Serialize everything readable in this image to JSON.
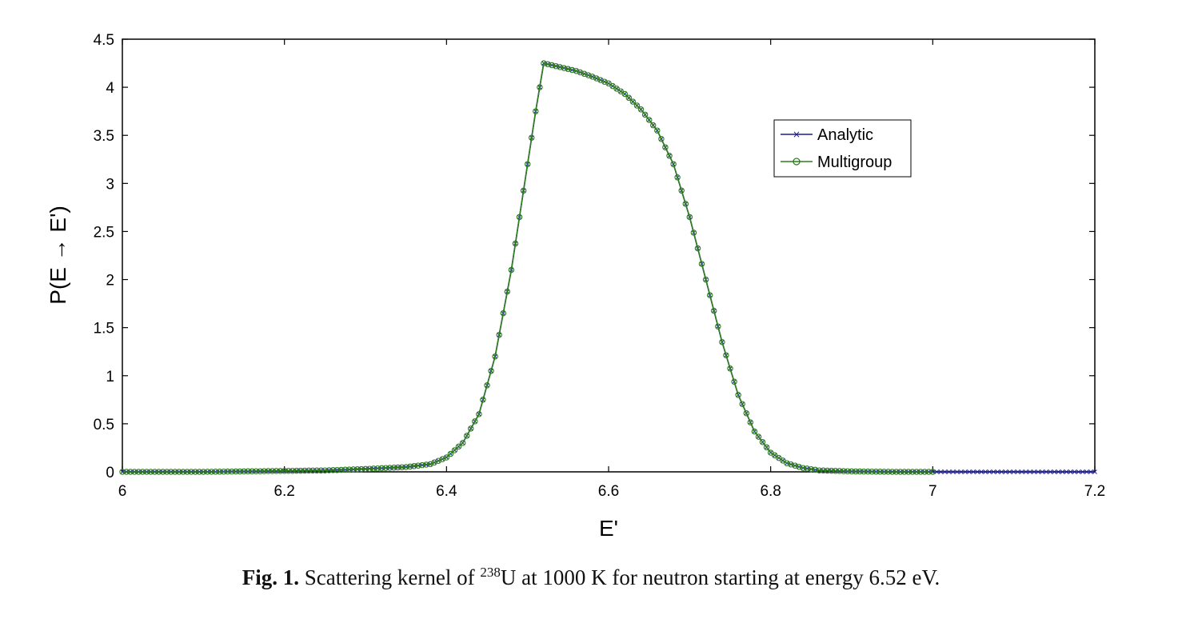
{
  "chart_data": {
    "type": "line",
    "title": "",
    "xlabel": "E'",
    "ylabel": "P(E → E')",
    "xlim": [
      6,
      7.2
    ],
    "ylim": [
      0,
      4.5
    ],
    "xticks": [
      "6",
      "6.2",
      "6.4",
      "6.6",
      "6.8",
      "7",
      "7.2"
    ],
    "yticks": [
      "0",
      "0.5",
      "1",
      "1.5",
      "2",
      "2.5",
      "3",
      "3.5",
      "4",
      "4.5"
    ],
    "legend_position": "top-right",
    "grid": false,
    "series": [
      {
        "name": "Analytic",
        "color": "#1f1f8f",
        "marker": "x",
        "x": [
          6.0,
          6.1,
          6.2,
          6.25,
          6.3,
          6.35,
          6.38,
          6.4,
          6.42,
          6.44,
          6.46,
          6.48,
          6.5,
          6.51,
          6.52,
          6.54,
          6.56,
          6.58,
          6.6,
          6.62,
          6.64,
          6.66,
          6.68,
          6.7,
          6.72,
          6.74,
          6.76,
          6.78,
          6.8,
          6.82,
          6.84,
          6.86,
          6.9,
          6.95,
          7.0,
          7.05,
          7.1,
          7.15,
          7.2
        ],
        "y": [
          0.0,
          0.0,
          0.01,
          0.015,
          0.03,
          0.05,
          0.08,
          0.15,
          0.3,
          0.6,
          1.2,
          2.1,
          3.2,
          3.75,
          4.25,
          4.21,
          4.17,
          4.11,
          4.04,
          3.93,
          3.77,
          3.55,
          3.2,
          2.65,
          2.0,
          1.35,
          0.8,
          0.42,
          0.2,
          0.09,
          0.04,
          0.015,
          0.005,
          0.0,
          0.0,
          0.0,
          0.0,
          0.0,
          0.0
        ]
      },
      {
        "name": "Multigroup",
        "color": "#2e7d1f",
        "marker": "o",
        "x": [
          6.0,
          6.1,
          6.2,
          6.25,
          6.3,
          6.35,
          6.38,
          6.4,
          6.42,
          6.44,
          6.46,
          6.48,
          6.5,
          6.51,
          6.52,
          6.54,
          6.56,
          6.58,
          6.6,
          6.62,
          6.64,
          6.66,
          6.68,
          6.7,
          6.72,
          6.74,
          6.76,
          6.78,
          6.8,
          6.82,
          6.84,
          6.86,
          6.9,
          6.95,
          7.0
        ],
        "y": [
          0.0,
          0.0,
          0.01,
          0.015,
          0.03,
          0.05,
          0.08,
          0.15,
          0.3,
          0.6,
          1.2,
          2.1,
          3.2,
          3.75,
          4.25,
          4.21,
          4.17,
          4.11,
          4.04,
          3.93,
          3.77,
          3.55,
          3.2,
          2.65,
          2.0,
          1.35,
          0.8,
          0.42,
          0.2,
          0.09,
          0.04,
          0.015,
          0.005,
          0.0,
          0.0
        ]
      }
    ]
  },
  "caption": {
    "label": "Fig. 1.",
    "text_before": "Scattering kernel of",
    "superscript": "238",
    "text_after": "U at 1000 K for neutron starting at energy 6.52 eV."
  }
}
